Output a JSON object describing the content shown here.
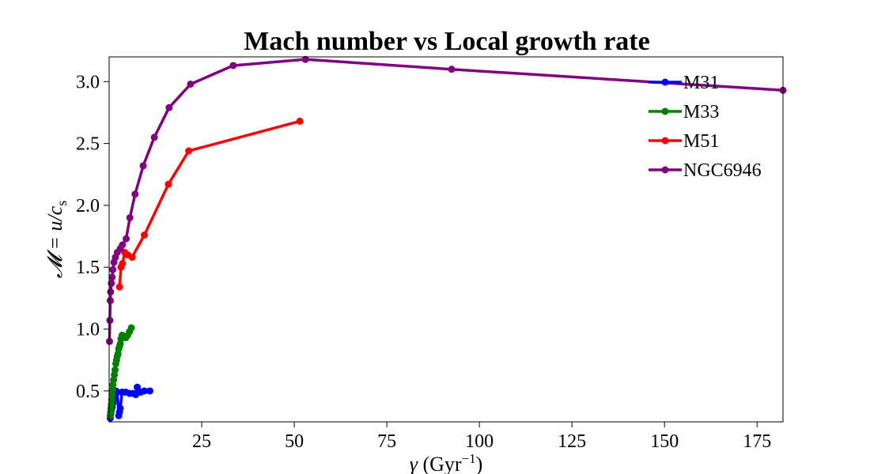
{
  "chart_data": {
    "type": "line",
    "title": "Mach number vs Local growth rate",
    "xlabel": "γ (Gyr⁻¹)",
    "ylabel": "𝓜 = u/c_s",
    "xlim": [
      0,
      182
    ],
    "ylim": [
      0.25,
      3.2
    ],
    "xticks": [
      25,
      50,
      75,
      100,
      125,
      150,
      175
    ],
    "yticks": [
      0.5,
      1.0,
      1.5,
      2.0,
      2.5,
      3.0
    ],
    "legend_position": "top-right",
    "grid": false,
    "series": [
      {
        "name": "M31",
        "color": "#0000ff",
        "points": [
          [
            0.3,
            0.28
          ],
          [
            0.4,
            0.31
          ],
          [
            0.5,
            0.33
          ],
          [
            0.6,
            0.35
          ],
          [
            0.8,
            0.37
          ],
          [
            1.0,
            0.4
          ],
          [
            1.2,
            0.43
          ],
          [
            1.5,
            0.47
          ],
          [
            1.8,
            0.5
          ],
          [
            2.2,
            0.49
          ],
          [
            2.6,
            0.3
          ],
          [
            2.8,
            0.33
          ],
          [
            3.0,
            0.36
          ],
          [
            3.5,
            0.49
          ],
          [
            4.5,
            0.49
          ],
          [
            5.5,
            0.48
          ],
          [
            6.5,
            0.48
          ],
          [
            7.2,
            0.47
          ],
          [
            7.6,
            0.53
          ],
          [
            8.5,
            0.49
          ],
          [
            9.5,
            0.5
          ],
          [
            11.0,
            0.5
          ]
        ]
      },
      {
        "name": "M33",
        "color": "#008000",
        "points": [
          [
            0.3,
            0.3
          ],
          [
            0.4,
            0.33
          ],
          [
            0.5,
            0.36
          ],
          [
            0.6,
            0.39
          ],
          [
            0.7,
            0.43
          ],
          [
            0.8,
            0.47
          ],
          [
            0.9,
            0.51
          ],
          [
            1.0,
            0.55
          ],
          [
            1.2,
            0.59
          ],
          [
            1.4,
            0.63
          ],
          [
            1.6,
            0.67
          ],
          [
            1.8,
            0.72
          ],
          [
            2.0,
            0.75
          ],
          [
            2.2,
            0.78
          ],
          [
            2.4,
            0.8
          ],
          [
            2.6,
            0.84
          ],
          [
            2.8,
            0.86
          ],
          [
            3.0,
            0.88
          ],
          [
            3.2,
            0.92
          ],
          [
            3.5,
            0.95
          ],
          [
            4.0,
            0.94
          ],
          [
            4.5,
            0.93
          ],
          [
            5.0,
            0.95
          ],
          [
            5.5,
            0.98
          ],
          [
            6.0,
            1.01
          ]
        ]
      },
      {
        "name": "M51",
        "color": "#ff0000",
        "points": [
          [
            2.8,
            1.34
          ],
          [
            3.2,
            1.5
          ],
          [
            3.6,
            1.53
          ],
          [
            4.2,
            1.62
          ],
          [
            5.0,
            1.6
          ],
          [
            6.2,
            1.58
          ],
          [
            9.5,
            1.76
          ],
          [
            16.0,
            2.17
          ],
          [
            21.5,
            2.44
          ],
          [
            51.5,
            2.68
          ]
        ]
      },
      {
        "name": "NGC6946",
        "color": "#800080",
        "points": [
          [
            0.1,
            0.9
          ],
          [
            0.2,
            1.07
          ],
          [
            0.3,
            1.23
          ],
          [
            0.4,
            1.3
          ],
          [
            0.6,
            1.37
          ],
          [
            0.8,
            1.42
          ],
          [
            1.0,
            1.48
          ],
          [
            1.3,
            1.54
          ],
          [
            1.7,
            1.58
          ],
          [
            2.2,
            1.62
          ],
          [
            3.0,
            1.65
          ],
          [
            3.6,
            1.68
          ],
          [
            4.6,
            1.73
          ],
          [
            5.6,
            1.9
          ],
          [
            7.0,
            2.09
          ],
          [
            9.2,
            2.32
          ],
          [
            12.2,
            2.55
          ],
          [
            16.2,
            2.79
          ],
          [
            22.0,
            2.98
          ],
          [
            33.5,
            3.13
          ],
          [
            53.0,
            3.18
          ],
          [
            92.5,
            3.1
          ],
          [
            182.0,
            2.93
          ]
        ]
      }
    ]
  }
}
